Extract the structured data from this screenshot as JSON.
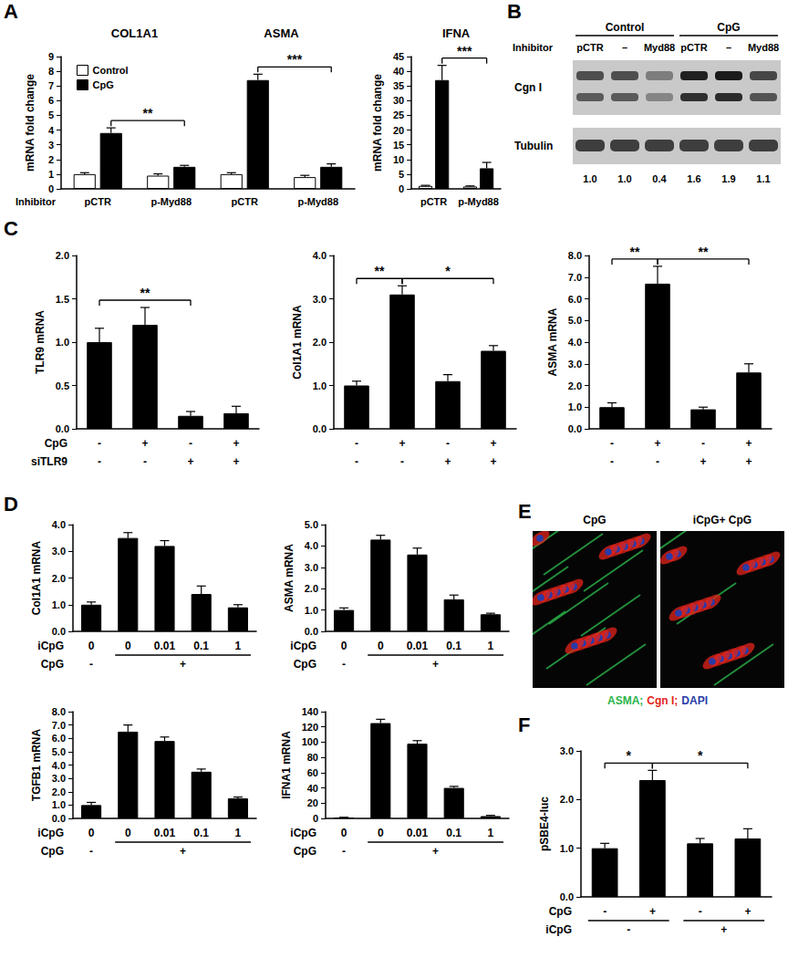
{
  "panel_labels": [
    "A",
    "B",
    "C",
    "D",
    "E",
    "F"
  ],
  "chart_data": [
    {
      "type": "bar",
      "titles": [
        {
          "text": "COL1A1",
          "categories": [
            0,
            1
          ]
        },
        {
          "text": "ASMA",
          "categories": [
            2,
            3
          ]
        }
      ],
      "categories": [
        "pCTR",
        "p-Myd88",
        "pCTR",
        "p-Myd88"
      ],
      "xlabel": "Inhibitor",
      "ylabel": "mRNA fold change",
      "series": [
        {
          "name": "Control",
          "color": "#ffffff",
          "values": [
            1.0,
            0.9,
            1.0,
            0.8
          ],
          "errors": [
            0.1,
            0.12,
            0.1,
            0.12
          ]
        },
        {
          "name": "CpG",
          "color": "#000000",
          "values": [
            3.8,
            1.5,
            7.4,
            1.5
          ],
          "errors": [
            0.35,
            0.1,
            0.4,
            0.2
          ]
        }
      ],
      "ylim": [
        0,
        9
      ],
      "yticks": [
        0,
        1,
        2,
        3,
        4,
        5,
        6,
        7,
        8,
        9
      ],
      "legend": "top-left",
      "significance": [
        {
          "series": 1,
          "from": 0,
          "to": 1,
          "label": "**"
        },
        {
          "series": 1,
          "from": 2,
          "to": 3,
          "label": "***"
        }
      ]
    },
    {
      "type": "bar",
      "title": "IFNA",
      "categories": [
        "pCTR",
        "p-Myd88"
      ],
      "ylabel": "mRNA fold change",
      "series": [
        {
          "name": "Control",
          "color": "#ffffff",
          "values": [
            1.0,
            0.8
          ],
          "errors": [
            0.2,
            0.2
          ]
        },
        {
          "name": "CpG",
          "color": "#000000",
          "values": [
            37,
            7
          ],
          "errors": [
            5,
            2
          ]
        }
      ],
      "ylim": [
        0,
        45
      ],
      "yticks": [
        0,
        5,
        10,
        15,
        20,
        25,
        30,
        35,
        40,
        45
      ],
      "significance": [
        {
          "series": 1,
          "from": 0,
          "to": 1,
          "label": "***"
        }
      ]
    },
    {
      "type": "bar",
      "ylabel": "TLR9 mRNA",
      "categories": [
        null,
        null,
        null,
        null
      ],
      "values": [
        1.0,
        1.2,
        0.15,
        0.18
      ],
      "errors": [
        0.16,
        0.2,
        0.05,
        0.08
      ],
      "color": "#000000",
      "ylim": [
        0,
        2
      ],
      "yticks": [
        {
          "value": 0,
          "label": "0.0"
        },
        0.5,
        {
          "value": 1,
          "label": "1.0"
        },
        1.5,
        {
          "value": 2,
          "label": "2.0"
        }
      ],
      "rows": [
        {
          "name": "CpG",
          "cells": [
            {
              "text": "-"
            },
            {
              "text": "+"
            },
            {
              "text": "-"
            },
            {
              "text": "+"
            }
          ]
        },
        {
          "name": "siTLR9",
          "cells": [
            {
              "text": "-"
            },
            {
              "text": "-"
            },
            {
              "text": "+"
            },
            {
              "text": "+"
            }
          ]
        }
      ],
      "significance": [
        {
          "from": 0,
          "to": 2,
          "label": "**"
        }
      ]
    },
    {
      "type": "bar",
      "ylabel": "Col1A1 mRNA",
      "categories": [
        null,
        null,
        null,
        null
      ],
      "values": [
        1.0,
        3.1,
        1.1,
        1.8
      ],
      "errors": [
        0.1,
        0.2,
        0.15,
        0.12
      ],
      "color": "#000000",
      "ylim": [
        0,
        4
      ],
      "yticks": [
        {
          "value": 0,
          "label": "0.0"
        },
        {
          "value": 1,
          "label": "1.0"
        },
        {
          "value": 2,
          "label": "2.0"
        },
        {
          "value": 3,
          "label": "3.0"
        },
        {
          "value": 4,
          "label": "4.0"
        }
      ],
      "rows": [
        {
          "cells": [
            {
              "text": "-"
            },
            {
              "text": "+"
            },
            {
              "text": "-"
            },
            {
              "text": "+"
            }
          ]
        },
        {
          "cells": [
            {
              "text": "-"
            },
            {
              "text": "-"
            },
            {
              "text": "+"
            },
            {
              "text": "+"
            }
          ]
        }
      ],
      "significance": [
        {
          "from": 0,
          "to": 1,
          "label": "**"
        },
        {
          "from": 1,
          "to": 3,
          "label": "*"
        }
      ]
    },
    {
      "type": "bar",
      "ylabel": "ASMA mRNA",
      "categories": [
        null,
        null,
        null,
        null
      ],
      "values": [
        1.0,
        6.7,
        0.9,
        2.6
      ],
      "errors": [
        0.2,
        0.8,
        0.1,
        0.4
      ],
      "color": "#000000",
      "ylim": [
        0,
        8
      ],
      "yticks": [
        {
          "value": 0,
          "label": "0.0"
        },
        {
          "value": 1,
          "label": "1.0"
        },
        {
          "value": 2,
          "label": "2.0"
        },
        {
          "value": 3,
          "label": "3.0"
        },
        {
          "value": 4,
          "label": "4.0"
        },
        {
          "value": 5,
          "label": "5.0"
        },
        {
          "value": 6,
          "label": "6.0"
        },
        {
          "value": 7,
          "label": "7.0"
        },
        {
          "value": 8,
          "label": "8.0"
        }
      ],
      "rows": [
        {
          "cells": [
            {
              "text": "-"
            },
            {
              "text": "+"
            },
            {
              "text": "-"
            },
            {
              "text": "+"
            }
          ]
        },
        {
          "cells": [
            {
              "text": "-"
            },
            {
              "text": "-"
            },
            {
              "text": "+"
            },
            {
              "text": "+"
            }
          ]
        }
      ],
      "significance": [
        {
          "from": 0,
          "to": 1,
          "label": "**"
        },
        {
          "from": 1,
          "to": 3,
          "label": "**"
        }
      ]
    },
    {
      "type": "bar",
      "ylabel": "Col1A1 mRNA",
      "categories": [
        null,
        null,
        null,
        null,
        null
      ],
      "values": [
        1.0,
        3.5,
        3.2,
        1.4,
        0.9
      ],
      "errors": [
        0.1,
        0.2,
        0.2,
        0.3,
        0.1
      ],
      "color": "#000000",
      "ylim": [
        0,
        4
      ],
      "yticks": [
        {
          "value": 0,
          "label": "0.0"
        },
        {
          "value": 1,
          "label": "1.0"
        },
        {
          "value": 2,
          "label": "2.0"
        },
        {
          "value": 3,
          "label": "3.0"
        },
        {
          "value": 4,
          "label": "4.0"
        }
      ],
      "rows": [
        {
          "name": "iCpG",
          "cells": [
            {
              "text": "0"
            },
            {
              "text": "0"
            },
            {
              "text": "0.01"
            },
            {
              "text": "0.1"
            },
            {
              "text": "1"
            }
          ]
        },
        {
          "name": "CpG",
          "cells": [
            {
              "text": "-"
            },
            {
              "text": "+",
              "span": 4
            }
          ]
        }
      ]
    },
    {
      "type": "bar",
      "ylabel": "ASMA mRNA",
      "categories": [
        null,
        null,
        null,
        null,
        null
      ],
      "values": [
        1.0,
        4.3,
        3.6,
        1.5,
        0.8
      ],
      "errors": [
        0.1,
        0.2,
        0.3,
        0.2,
        0.05
      ],
      "color": "#000000",
      "ylim": [
        0,
        5
      ],
      "yticks": [
        {
          "value": 0,
          "label": "0.0"
        },
        {
          "value": 1,
          "label": "1.0"
        },
        {
          "value": 2,
          "label": "2.0"
        },
        {
          "value": 3,
          "label": "3.0"
        },
        {
          "value": 4,
          "label": "4.0"
        },
        {
          "value": 5,
          "label": "5.0"
        }
      ],
      "rows": [
        {
          "name": "iCpG",
          "cells": [
            {
              "text": "0"
            },
            {
              "text": "0"
            },
            {
              "text": "0.01"
            },
            {
              "text": "0.1"
            },
            {
              "text": "1"
            }
          ]
        },
        {
          "name": "CpG",
          "cells": [
            {
              "text": "-"
            },
            {
              "text": "+",
              "span": 4
            }
          ]
        }
      ]
    },
    {
      "type": "bar",
      "ylabel": "TGFB1 mRNA",
      "categories": [
        null,
        null,
        null,
        null,
        null
      ],
      "values": [
        1.0,
        6.5,
        5.8,
        3.5,
        1.5
      ],
      "errors": [
        0.2,
        0.5,
        0.3,
        0.2,
        0.1
      ],
      "color": "#000000",
      "ylim": [
        0,
        8
      ],
      "yticks": [
        {
          "value": 0,
          "label": "0.0"
        },
        {
          "value": 1,
          "label": "1.0"
        },
        {
          "value": 2,
          "label": "2.0"
        },
        {
          "value": 3,
          "label": "3.0"
        },
        {
          "value": 4,
          "label": "4.0"
        },
        {
          "value": 5,
          "label": "5.0"
        },
        {
          "value": 6,
          "label": "6.0"
        },
        {
          "value": 7,
          "label": "7.0"
        },
        {
          "value": 8,
          "label": "8.0"
        }
      ],
      "rows": [
        {
          "name": "iCpG",
          "cells": [
            {
              "text": "0"
            },
            {
              "text": "0"
            },
            {
              "text": "0.01"
            },
            {
              "text": "0.1"
            },
            {
              "text": "1"
            }
          ]
        },
        {
          "name": "CpG",
          "cells": [
            {
              "text": "-"
            },
            {
              "text": "+",
              "span": 4
            }
          ]
        }
      ]
    },
    {
      "type": "bar",
      "ylabel": "IFNA1 mRNA",
      "categories": [
        null,
        null,
        null,
        null,
        null
      ],
      "values": [
        1,
        125,
        98,
        40,
        3
      ],
      "errors": [
        0.5,
        5,
        4,
        2,
        1
      ],
      "color": "#000000",
      "ylim": [
        0,
        140
      ],
      "yticks": [
        0,
        20,
        40,
        60,
        80,
        100,
        120,
        140
      ],
      "rows": [
        {
          "name": "iCpG",
          "cells": [
            {
              "text": "0"
            },
            {
              "text": "0"
            },
            {
              "text": "0.01"
            },
            {
              "text": "0.1"
            },
            {
              "text": "1"
            }
          ]
        },
        {
          "name": "CpG",
          "cells": [
            {
              "text": "-"
            },
            {
              "text": "+",
              "span": 4
            }
          ]
        }
      ]
    },
    {
      "type": "bar",
      "ylabel": "pSBE4-luc",
      "categories": [
        null,
        null,
        null,
        null
      ],
      "values": [
        1.0,
        2.4,
        1.1,
        1.2
      ],
      "errors": [
        0.1,
        0.2,
        0.1,
        0.2
      ],
      "color": "#000000",
      "ylim": [
        0,
        3
      ],
      "yticks": [
        {
          "value": 0,
          "label": "0.0"
        },
        {
          "value": 1,
          "label": "1.0"
        },
        {
          "value": 2,
          "label": "2.0"
        },
        {
          "value": 3,
          "label": "3.0"
        }
      ],
      "rows": [
        {
          "name": "CpG",
          "cells": [
            {
              "text": "-"
            },
            {
              "text": "+"
            },
            {
              "text": "-"
            },
            {
              "text": "+"
            }
          ]
        },
        {
          "name": "iCpG",
          "cells": [
            {
              "text": "-",
              "span": 2
            },
            {
              "text": "+",
              "span": 2
            }
          ]
        }
      ],
      "significance": [
        {
          "from": 0,
          "to": 1,
          "label": "*"
        },
        {
          "from": 1,
          "to": 3,
          "label": "*"
        }
      ]
    }
  ],
  "blot": {
    "groups": [
      {
        "text": "Control",
        "lanes": 3
      },
      {
        "text": "CpG",
        "lanes": 3
      }
    ],
    "row_label": "Inhibitor",
    "lanes": [
      "pCTR",
      "–",
      "Myd88",
      "pCTR",
      "–",
      "Myd88"
    ],
    "bands": [
      "Cgn I",
      "Tubulin"
    ],
    "quantification": [
      {
        "value": 1.0,
        "label": "1.0"
      },
      {
        "value": 1.0,
        "label": "1.0"
      },
      {
        "value": 0.4,
        "label": "0.4"
      },
      {
        "value": 1.6,
        "label": "1.6"
      },
      {
        "value": 1.9,
        "label": "1.9"
      },
      {
        "value": 1.1,
        "label": "1.1"
      }
    ]
  },
  "micrograph": {
    "panels": [
      "CpG",
      "iCpG+ CpG"
    ],
    "stain_legend": [
      {
        "text": "ASMA;",
        "color": "#2bb34a"
      },
      {
        "text": "Cgn I;",
        "color": "#e3241b"
      },
      {
        "text": "DAPI",
        "color": "#2a3aa8"
      }
    ]
  }
}
